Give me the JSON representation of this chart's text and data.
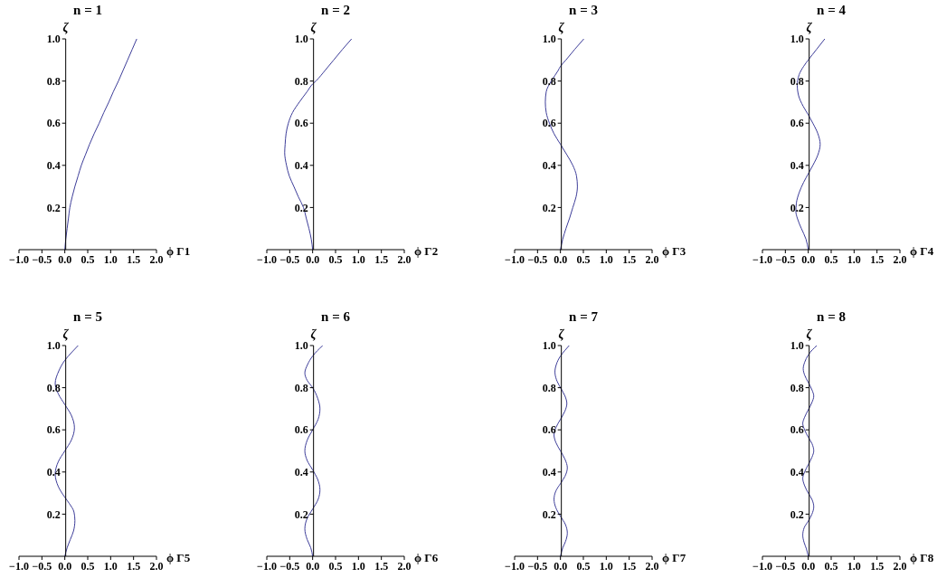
{
  "chart_data": [
    {
      "type": "line",
      "title": "n = 1",
      "xlabel": "ϕ Γ1",
      "ylabel": "ζ",
      "xlim": [
        -1,
        2
      ],
      "ylim": [
        0,
        1
      ],
      "xticks": [
        {
          "value": -1,
          "label": "−1.0"
        },
        {
          "value": -0.5,
          "label": "−0.5"
        },
        {
          "value": 0,
          "label": "0.0"
        },
        {
          "value": 0.5,
          "label": "0.5"
        },
        {
          "value": 1,
          "label": "1.0"
        },
        {
          "value": 1.5,
          "label": "1.5"
        },
        {
          "value": 2,
          "label": "2.0"
        }
      ],
      "yticks": [
        {
          "value": 0.2,
          "label": "0.2"
        },
        {
          "value": 0.4,
          "label": "0.4"
        },
        {
          "value": 0.6,
          "label": "0.6"
        },
        {
          "value": 0.8,
          "label": "0.8"
        },
        {
          "value": 1,
          "label": "1.0"
        }
      ],
      "series": [
        {
          "color": "#3d3d99",
          "x": [
            0,
            0.02,
            0.05,
            0.08,
            0.11,
            0.16,
            0.22,
            0.29,
            0.36,
            0.45,
            0.54,
            0.64,
            0.75,
            0.85,
            0.96,
            1.06,
            1.17,
            1.27,
            1.37,
            1.47,
            1.57
          ],
          "values": [
            0,
            0.05,
            0.1,
            0.15,
            0.2,
            0.25,
            0.3,
            0.35,
            0.4,
            0.45,
            0.5,
            0.55,
            0.6,
            0.65,
            0.7,
            0.75,
            0.8,
            0.85,
            0.9,
            0.95,
            1
          ]
        }
      ]
    },
    {
      "type": "line",
      "title": "n = 2",
      "xlabel": "ϕ Γ2",
      "ylabel": "ζ",
      "xlim": [
        -1,
        2
      ],
      "ylim": [
        0,
        1
      ],
      "xticks": [
        {
          "value": -1,
          "label": "−1.0"
        },
        {
          "value": -0.5,
          "label": "−0.5"
        },
        {
          "value": 0,
          "label": "0.0"
        },
        {
          "value": 0.5,
          "label": "0.5"
        },
        {
          "value": 1,
          "label": "1.0"
        },
        {
          "value": 1.5,
          "label": "1.5"
        },
        {
          "value": 2,
          "label": "2.0"
        }
      ],
      "yticks": [
        {
          "value": 0.2,
          "label": "0.2"
        },
        {
          "value": 0.4,
          "label": "0.4"
        },
        {
          "value": 0.6,
          "label": "0.6"
        },
        {
          "value": 0.8,
          "label": "0.8"
        },
        {
          "value": 1,
          "label": "1.0"
        }
      ],
      "series": [
        {
          "color": "#3d3d99",
          "x": [
            0,
            -0.03,
            -0.08,
            -0.14,
            -0.2,
            -0.31,
            -0.41,
            -0.51,
            -0.57,
            -0.61,
            -0.6,
            -0.58,
            -0.53,
            -0.44,
            -0.29,
            -0.12,
            0,
            0.07,
            0.27,
            0.46,
            0.65,
            0.85
          ],
          "values": [
            0,
            0.05,
            0.1,
            0.15,
            0.2,
            0.25,
            0.3,
            0.35,
            0.4,
            0.46,
            0.5,
            0.55,
            0.6,
            0.65,
            0.7,
            0.75,
            0.786,
            0.8,
            0.85,
            0.9,
            0.95,
            1
          ]
        }
      ]
    },
    {
      "type": "line",
      "title": "n = 3",
      "xlabel": "ϕ Γ3",
      "ylabel": "ζ",
      "xlim": [
        -1,
        2
      ],
      "ylim": [
        0,
        1
      ],
      "xticks": [
        {
          "value": -1,
          "label": "−1.0"
        },
        {
          "value": -0.5,
          "label": "−0.5"
        },
        {
          "value": 0,
          "label": "0.0"
        },
        {
          "value": 0.5,
          "label": "0.5"
        },
        {
          "value": 1,
          "label": "1.0"
        },
        {
          "value": 1.5,
          "label": "1.5"
        },
        {
          "value": 2,
          "label": "2.0"
        }
      ],
      "yticks": [
        {
          "value": 0.2,
          "label": "0.2"
        },
        {
          "value": 0.4,
          "label": "0.4"
        },
        {
          "value": 0.6,
          "label": "0.6"
        },
        {
          "value": 0.8,
          "label": "0.8"
        },
        {
          "value": 1,
          "label": "1.0"
        }
      ],
      "series": [
        {
          "color": "#3d3d99",
          "x": [
            0,
            0.05,
            0.12,
            0.2,
            0.27,
            0.34,
            0.37,
            0.35,
            0.27,
            0.14,
            0,
            -0.14,
            -0.24,
            -0.31,
            -0.33,
            -0.31,
            -0.2,
            -0.05,
            0,
            0.12,
            0.31,
            0.51
          ],
          "values": [
            0,
            0.05,
            0.1,
            0.15,
            0.2,
            0.25,
            0.3,
            0.35,
            0.4,
            0.45,
            0.5,
            0.55,
            0.6,
            0.65,
            0.7,
            0.75,
            0.8,
            0.85,
            0.87,
            0.9,
            0.95,
            1
          ]
        }
      ]
    },
    {
      "type": "line",
      "title": "n = 4",
      "xlabel": "ϕ Γ4",
      "ylabel": "ζ",
      "xlim": [
        -1,
        2
      ],
      "ylim": [
        0,
        1
      ],
      "xticks": [
        {
          "value": -1,
          "label": "−1.0"
        },
        {
          "value": -0.5,
          "label": "−0.5"
        },
        {
          "value": 0,
          "label": "0.0"
        },
        {
          "value": 0.5,
          "label": "0.5"
        },
        {
          "value": 1,
          "label": "1.0"
        },
        {
          "value": 1.5,
          "label": "1.5"
        },
        {
          "value": 2,
          "label": "2.0"
        }
      ],
      "yticks": [
        {
          "value": 0.2,
          "label": "0.2"
        },
        {
          "value": 0.4,
          "label": "0.4"
        },
        {
          "value": 0.6,
          "label": "0.6"
        },
        {
          "value": 0.8,
          "label": "0.8"
        },
        {
          "value": 1,
          "label": "1.0"
        }
      ],
      "series": [
        {
          "color": "#3d3d99",
          "x": [
            0,
            -0.05,
            -0.15,
            -0.24,
            -0.27,
            -0.26,
            -0.2,
            -0.1,
            0,
            0.1,
            0.21,
            0.26,
            0.21,
            0.1,
            0,
            -0.11,
            -0.21,
            -0.24,
            -0.2,
            -0.1,
            0,
            0.18,
            0.36
          ],
          "values": [
            0,
            0.05,
            0.1,
            0.15,
            0.18,
            0.22,
            0.27,
            0.32,
            0.36,
            0.4,
            0.45,
            0.5,
            0.55,
            0.6,
            0.64,
            0.68,
            0.73,
            0.78,
            0.83,
            0.87,
            0.9,
            0.95,
            1
          ]
        }
      ]
    },
    {
      "type": "line",
      "title": "n = 5",
      "xlabel": "ϕ Γ5",
      "ylabel": "ζ",
      "xlim": [
        -1,
        2
      ],
      "ylim": [
        0,
        1
      ],
      "xticks": [
        {
          "value": -1,
          "label": "−1.0"
        },
        {
          "value": -0.5,
          "label": "−0.5"
        },
        {
          "value": 0,
          "label": "0.0"
        },
        {
          "value": 0.5,
          "label": "0.5"
        },
        {
          "value": 1,
          "label": "1.0"
        },
        {
          "value": 1.5,
          "label": "1.5"
        },
        {
          "value": 2,
          "label": "2.0"
        }
      ],
      "yticks": [
        {
          "value": 0.2,
          "label": "0.2"
        },
        {
          "value": 0.4,
          "label": "0.4"
        },
        {
          "value": 0.6,
          "label": "0.6"
        },
        {
          "value": 0.8,
          "label": "0.8"
        },
        {
          "value": 1,
          "label": "1.0"
        }
      ],
      "series": [
        {
          "color": "#3d3d99",
          "x": [
            0,
            0.05,
            0.12,
            0.19,
            0.22,
            0.2,
            0.1,
            0,
            -0.14,
            -0.21,
            -0.14,
            0,
            0.14,
            0.21,
            0.14,
            0,
            -0.14,
            -0.21,
            -0.13,
            0,
            0.16,
            0.29
          ],
          "values": [
            0,
            0.04,
            0.08,
            0.12,
            0.17,
            0.21,
            0.25,
            0.28,
            0.33,
            0.39,
            0.45,
            0.5,
            0.55,
            0.61,
            0.67,
            0.72,
            0.77,
            0.82,
            0.88,
            0.93,
            0.97,
            1
          ]
        }
      ]
    },
    {
      "type": "line",
      "title": "n = 6",
      "xlabel": "ϕ Γ6",
      "ylabel": "ζ",
      "xlim": [
        -1,
        2
      ],
      "ylim": [
        0,
        1
      ],
      "xticks": [
        {
          "value": -1,
          "label": "−1.0"
        },
        {
          "value": -0.5,
          "label": "−0.5"
        },
        {
          "value": 0,
          "label": "0.0"
        },
        {
          "value": 0.5,
          "label": "0.5"
        },
        {
          "value": 1,
          "label": "1.0"
        },
        {
          "value": 1.5,
          "label": "1.5"
        },
        {
          "value": 2,
          "label": "2.0"
        }
      ],
      "yticks": [
        {
          "value": 0.2,
          "label": "0.2"
        },
        {
          "value": 0.4,
          "label": "0.4"
        },
        {
          "value": 0.6,
          "label": "0.6"
        },
        {
          "value": 0.8,
          "label": "0.8"
        },
        {
          "value": 1,
          "label": "1.0"
        }
      ],
      "series": [
        {
          "color": "#3d3d99",
          "x": [
            0,
            -0.04,
            -0.12,
            -0.17,
            -0.12,
            0,
            0.12,
            0.16,
            0.11,
            0,
            -0.12,
            -0.17,
            -0.12,
            0,
            0.12,
            0.16,
            0.11,
            0,
            -0.12,
            -0.17,
            -0.11,
            0,
            0.1,
            0.22
          ],
          "values": [
            0,
            0.04,
            0.08,
            0.13,
            0.18,
            0.224,
            0.27,
            0.316,
            0.365,
            0.41,
            0.455,
            0.5,
            0.55,
            0.6,
            0.65,
            0.7,
            0.75,
            0.8,
            0.835,
            0.87,
            0.91,
            0.95,
            0.975,
            1
          ]
        }
      ]
    },
    {
      "type": "line",
      "title": "n = 7",
      "xlabel": "ϕ Γ7",
      "ylabel": "ζ",
      "xlim": [
        -1,
        2
      ],
      "ylim": [
        0,
        1
      ],
      "xticks": [
        {
          "value": -1,
          "label": "−1.0"
        },
        {
          "value": -0.5,
          "label": "−0.5"
        },
        {
          "value": 0,
          "label": "0.0"
        },
        {
          "value": 0.5,
          "label": "0.5"
        },
        {
          "value": 1,
          "label": "1.0"
        },
        {
          "value": 1.5,
          "label": "1.5"
        },
        {
          "value": 2,
          "label": "2.0"
        }
      ],
      "yticks": [
        {
          "value": 0.2,
          "label": "0.2"
        },
        {
          "value": 0.4,
          "label": "0.4"
        },
        {
          "value": 0.6,
          "label": "0.6"
        },
        {
          "value": 0.8,
          "label": "0.8"
        },
        {
          "value": 1,
          "label": "1.0"
        }
      ],
      "series": [
        {
          "color": "#3d3d99",
          "x": [
            0,
            0.05,
            0.11,
            0.15,
            0.11,
            0,
            -0.1,
            -0.14,
            -0.1,
            0,
            0.1,
            0.15,
            0.1,
            0,
            -0.1,
            -0.14,
            -0.1,
            0,
            0.1,
            0.14,
            0.1,
            0,
            -0.09,
            -0.12,
            -0.09,
            0,
            0.09,
            0.19
          ],
          "values": [
            0,
            0.04,
            0.07,
            0.11,
            0.15,
            0.19,
            0.23,
            0.27,
            0.31,
            0.345,
            0.38,
            0.42,
            0.46,
            0.5,
            0.54,
            0.575,
            0.61,
            0.65,
            0.69,
            0.725,
            0.76,
            0.8,
            0.84,
            0.875,
            0.91,
            0.95,
            0.975,
            1
          ]
        }
      ]
    },
    {
      "type": "line",
      "title": "n = 8",
      "xlabel": "ϕ Γ8",
      "ylabel": "ζ",
      "xlim": [
        -1,
        2
      ],
      "ylim": [
        0,
        1
      ],
      "xticks": [
        {
          "value": -1,
          "label": "−1.0"
        },
        {
          "value": -0.5,
          "label": "−0.5"
        },
        {
          "value": 0,
          "label": "0.0"
        },
        {
          "value": 0.5,
          "label": "0.5"
        },
        {
          "value": 1,
          "label": "1.0"
        },
        {
          "value": 1.5,
          "label": "1.5"
        },
        {
          "value": 2,
          "label": "2.0"
        }
      ],
      "yticks": [
        {
          "value": 0.2,
          "label": "0.2"
        },
        {
          "value": 0.4,
          "label": "0.4"
        },
        {
          "value": 0.6,
          "label": "0.6"
        },
        {
          "value": 0.8,
          "label": "0.8"
        },
        {
          "value": 1,
          "label": "1.0"
        }
      ],
      "series": [
        {
          "color": "#3d3d99",
          "x": [
            0,
            -0.04,
            -0.09,
            -0.12,
            -0.09,
            0,
            0.08,
            0.12,
            0.08,
            0,
            -0.08,
            -0.12,
            -0.08,
            0,
            0.08,
            0.12,
            0.08,
            0,
            -0.08,
            -0.12,
            -0.08,
            0,
            0.08,
            0.12,
            0.08,
            0,
            -0.08,
            -0.11,
            -0.08,
            0,
            0.09,
            0.19
          ],
          "values": [
            0,
            0.035,
            0.065,
            0.1,
            0.135,
            0.167,
            0.2,
            0.235,
            0.27,
            0.3,
            0.335,
            0.37,
            0.4,
            0.435,
            0.47,
            0.5,
            0.535,
            0.565,
            0.6,
            0.63,
            0.66,
            0.695,
            0.73,
            0.76,
            0.79,
            0.825,
            0.86,
            0.89,
            0.92,
            0.955,
            0.98,
            1
          ]
        }
      ]
    }
  ]
}
